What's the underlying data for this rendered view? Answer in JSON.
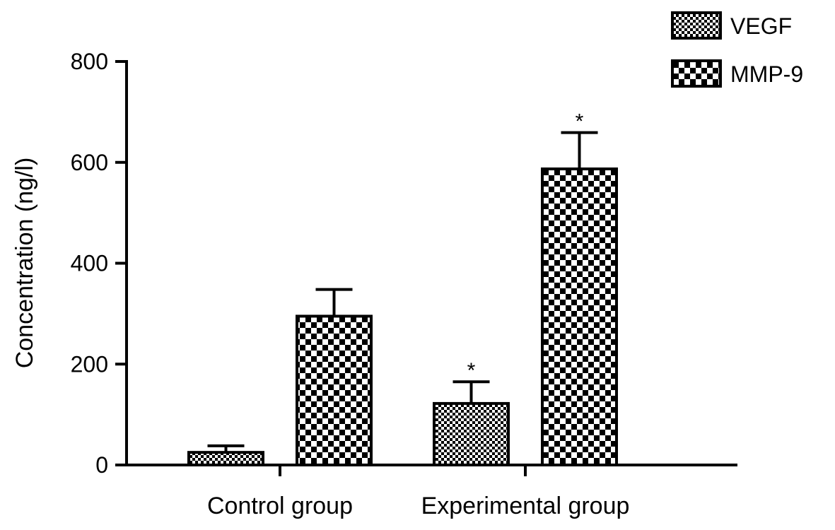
{
  "chart_data": {
    "type": "bar",
    "title": "",
    "xlabel": "",
    "ylabel": "Concentration (ng/l)",
    "ylim": [
      0,
      800
    ],
    "yticks": [
      0,
      200,
      400,
      600,
      800
    ],
    "grid": false,
    "legend_position": "top-right",
    "categories": [
      "Control group",
      "Experimental group"
    ],
    "series": [
      {
        "name": "VEGF",
        "pattern": "fine-checker",
        "values": [
          25,
          122
        ],
        "errors": [
          13,
          43
        ],
        "significance": [
          "",
          "*"
        ]
      },
      {
        "name": "MMP-9",
        "pattern": "coarse-checker",
        "values": [
          295,
          587
        ],
        "errors": [
          53,
          72
        ],
        "significance": [
          "",
          "*"
        ]
      }
    ]
  }
}
